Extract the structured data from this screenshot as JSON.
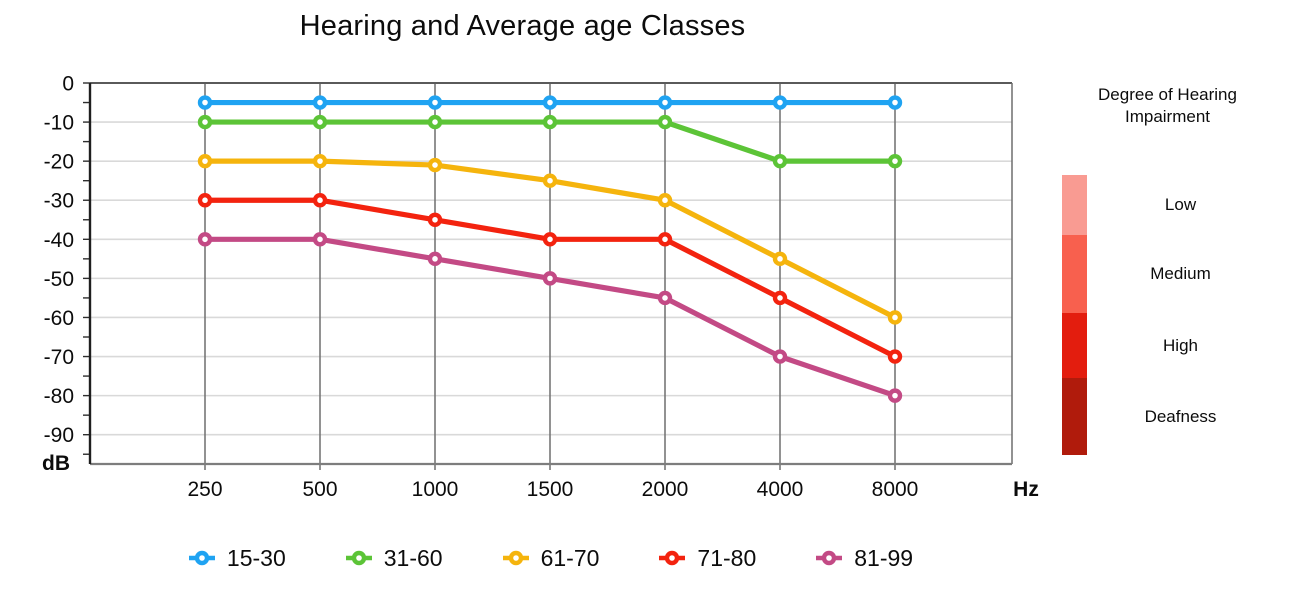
{
  "title": "Hearing and Average age Classes",
  "chart_data": {
    "type": "line",
    "x": [
      250,
      500,
      1000,
      1500,
      2000,
      4000,
      8000
    ],
    "x_labels": [
      "250",
      "500",
      "1000",
      "1500",
      "2000",
      "4000",
      "8000"
    ],
    "x_unit": "Hz",
    "y_unit": "dB",
    "y_ticks": [
      0,
      -10,
      -20,
      -30,
      -40,
      -50,
      -60,
      -70,
      -80,
      -90
    ],
    "ylim": [
      -97.5,
      0
    ],
    "grid": true,
    "legend_position": "bottom",
    "series": [
      {
        "name": "15-30",
        "color": "#1FA3F2",
        "values": [
          -5,
          -5,
          -5,
          -5,
          -5,
          -5,
          -5
        ]
      },
      {
        "name": "31-60",
        "color": "#5CC437",
        "values": [
          -10,
          -10,
          -10,
          -10,
          -10,
          -20,
          -20
        ]
      },
      {
        "name": "61-70",
        "color": "#F5B40D",
        "values": [
          -20,
          -20,
          -21,
          -25,
          -30,
          -45,
          -60
        ]
      },
      {
        "name": "71-80",
        "color": "#F3230F",
        "values": [
          -30,
          -30,
          -35,
          -40,
          -40,
          -55,
          -70
        ]
      },
      {
        "name": "81-99",
        "color": "#C34A85",
        "values": [
          -40,
          -40,
          -45,
          -50,
          -55,
          -70,
          -80
        ]
      }
    ]
  },
  "impairment_legend": {
    "title_line1": "Degree of Hearing",
    "title_line2": "Impairment",
    "levels": [
      {
        "label": "Low",
        "color": "#F99B92"
      },
      {
        "label": "Medium",
        "color": "#F8604E"
      },
      {
        "label": "High",
        "color": "#E31D0E"
      },
      {
        "label": "Deafness",
        "color": "#B01B0C"
      }
    ]
  }
}
